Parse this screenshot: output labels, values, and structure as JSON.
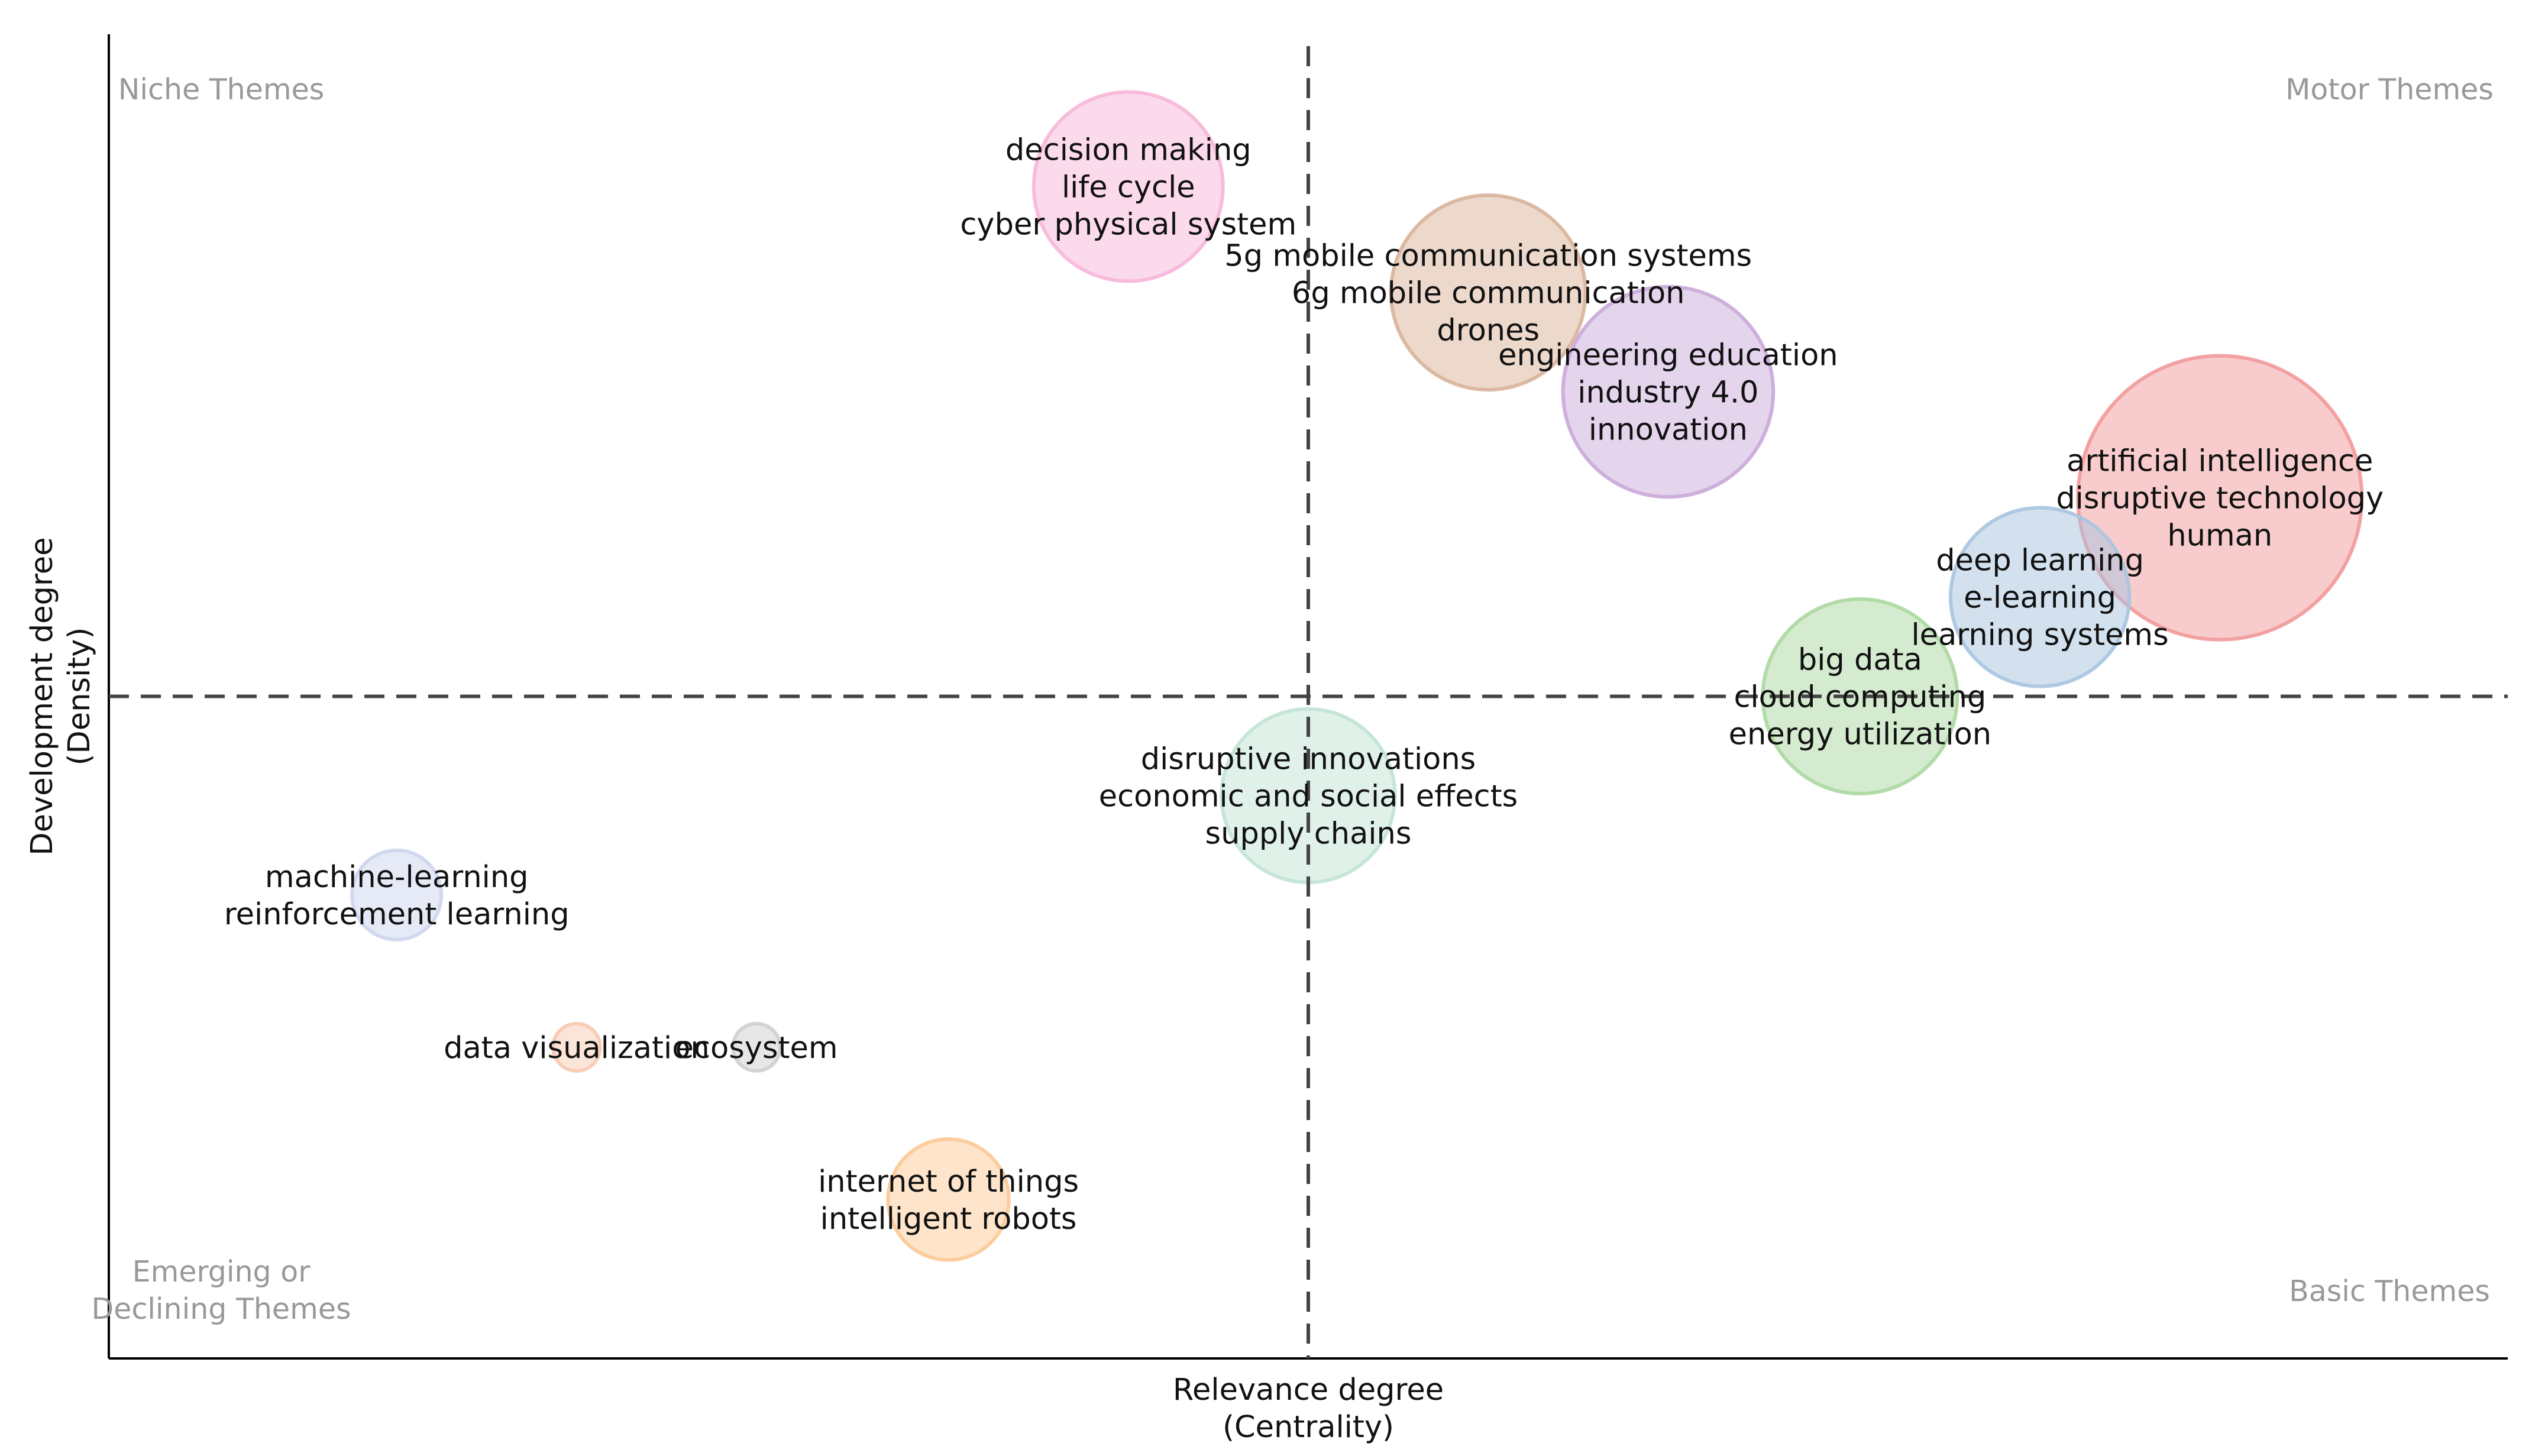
{
  "chart_data": {
    "type": "scatter",
    "title": "",
    "xlabel": [
      "Relevance degree",
      "(Centrality)"
    ],
    "ylabel": [
      "Development degree",
      "(Density)"
    ],
    "grid": false,
    "quadrant_labels": {
      "top_left": [
        "Niche Themes"
      ],
      "top_right": [
        "Motor Themes"
      ],
      "bottom_left": [
        "Emerging or",
        "Declining Themes"
      ],
      "bottom_right": [
        "Basic Themes"
      ]
    },
    "x_domain": [
      0,
      1
    ],
    "y_domain": [
      0,
      1
    ],
    "divider_x": 0.5,
    "divider_y": 0.5,
    "points": [
      {
        "x": 0.425,
        "y": 0.885,
        "size": 0.36,
        "color": "#f7b6d9",
        "labels": [
          "decision making",
          "life cycle",
          "cyber physical system"
        ]
      },
      {
        "x": 0.575,
        "y": 0.805,
        "size": 0.37,
        "color": "#d9b39a",
        "labels": [
          "5g mobile communication systems",
          "6g mobile communication",
          "drones"
        ]
      },
      {
        "x": 0.65,
        "y": 0.73,
        "size": 0.4,
        "color": "#c9a9d9",
        "labels": [
          "engineering education",
          "industry 4.0",
          "innovation"
        ]
      },
      {
        "x": 0.88,
        "y": 0.65,
        "size": 0.54,
        "color": "#f2999a",
        "labels": [
          "artificial intelligence",
          "disruptive technology",
          "human"
        ]
      },
      {
        "x": 0.805,
        "y": 0.575,
        "size": 0.34,
        "color": "#a8c4e0",
        "labels": [
          "deep learning",
          "e-learning",
          "learning systems"
        ]
      },
      {
        "x": 0.73,
        "y": 0.5,
        "size": 0.37,
        "color": "#abd8a0",
        "labels": [
          "big data",
          "cloud computing",
          "energy utilization"
        ]
      },
      {
        "x": 0.5,
        "y": 0.425,
        "size": 0.33,
        "color": "#c2e3d4",
        "labels": [
          "disruptive innovations",
          "economic and social effects",
          "supply chains"
        ]
      },
      {
        "x": 0.12,
        "y": 0.35,
        "size": 0.17,
        "color": "#cdd6ee",
        "labels": [
          "machine-learning",
          "reinforcement learning"
        ]
      },
      {
        "x": 0.195,
        "y": 0.235,
        "size": 0.09,
        "color": "#f7c9b1",
        "labels": [
          "data visualization"
        ]
      },
      {
        "x": 0.27,
        "y": 0.235,
        "size": 0.09,
        "color": "#cfcfcf",
        "labels": [
          "ecosystem"
        ]
      },
      {
        "x": 0.35,
        "y": 0.12,
        "size": 0.23,
        "color": "#fcc996",
        "labels": [
          "internet of things",
          "intelligent robots"
        ]
      }
    ]
  }
}
